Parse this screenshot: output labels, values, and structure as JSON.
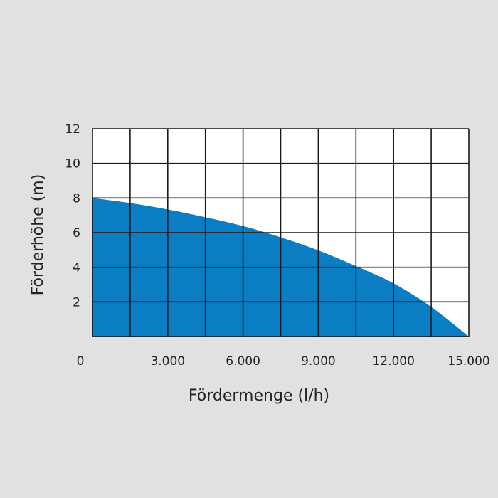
{
  "chart_data": {
    "type": "area",
    "title": "",
    "xlabel": "Fördermenge (l/h)",
    "ylabel": "Förderhöhe (m)",
    "xlim": [
      0,
      15000
    ],
    "ylim": [
      0,
      12
    ],
    "grid": true,
    "x_ticks": [
      0,
      3000,
      6000,
      9000,
      12000,
      15000
    ],
    "x_tick_labels": [
      "0",
      "3.000",
      "6.000",
      "9.000",
      "12.000",
      "15.000"
    ],
    "y_ticks": [
      2,
      4,
      6,
      8,
      10,
      12
    ],
    "y_tick_labels": [
      "2",
      "4",
      "6",
      "8",
      "10",
      "12"
    ],
    "x_grid_step": 1500,
    "y_grid_step": 2,
    "series": [
      {
        "x": [
          0,
          1500,
          3000,
          4500,
          6000,
          7500,
          9000,
          10500,
          12000,
          13500,
          15000
        ],
        "y": [
          8.0,
          7.71,
          7.34,
          6.89,
          6.38,
          5.73,
          4.98,
          4.07,
          3.07,
          1.71,
          0
        ],
        "color": "#0a7dc3"
      }
    ],
    "colors": {
      "background": "#e1e1e1",
      "plot_background": "#ffffff",
      "grid": "#1a1a1a"
    }
  }
}
